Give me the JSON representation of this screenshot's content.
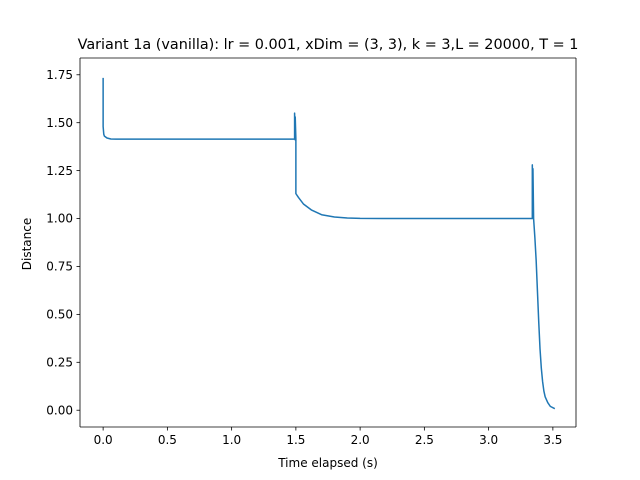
{
  "chart_data": {
    "type": "line",
    "title": "Variant 1a (vanilla): lr = 0.001, xDim = (3, 3), k = 3,L = 20000, T = 1",
    "xlabel": "Time elapsed (s)",
    "ylabel": "Distance",
    "xlim": [
      -0.18,
      3.68
    ],
    "ylim": [
      -0.0875,
      1.8375
    ],
    "xticks": [
      0.0,
      0.5,
      1.0,
      1.5,
      2.0,
      2.5,
      3.0,
      3.5
    ],
    "xtick_labels": [
      "0.0",
      "0.5",
      "1.0",
      "1.5",
      "2.0",
      "2.5",
      "3.0",
      "3.5"
    ],
    "yticks": [
      0.0,
      0.25,
      0.5,
      0.75,
      1.0,
      1.25,
      1.5,
      1.75
    ],
    "ytick_labels": [
      "0.00",
      "0.25",
      "0.50",
      "0.75",
      "1.00",
      "1.25",
      "1.50",
      "1.75"
    ],
    "grid": false,
    "legend": "none",
    "series": [
      {
        "color": "#1f77b4",
        "x": [
          0.0,
          0.0,
          0.005,
          0.01,
          0.03,
          0.06,
          0.1,
          0.5,
          1.0,
          1.49,
          1.49,
          1.495,
          1.495,
          1.5,
          1.5,
          1.52,
          1.56,
          1.62,
          1.7,
          1.8,
          1.9,
          2.0,
          2.2,
          2.5,
          3.0,
          3.34,
          3.34,
          3.345,
          3.345,
          3.35,
          3.36,
          3.37,
          3.38,
          3.39,
          3.4,
          3.41,
          3.42,
          3.43,
          3.44,
          3.46,
          3.48,
          3.51
        ],
        "y": [
          1.73,
          1.48,
          1.44,
          1.43,
          1.42,
          1.415,
          1.414,
          1.414,
          1.414,
          1.414,
          1.55,
          1.41,
          1.53,
          1.414,
          1.13,
          1.11,
          1.075,
          1.045,
          1.02,
          1.008,
          1.003,
          1.001,
          1.0,
          1.0,
          1.0,
          1.0,
          1.28,
          1.0,
          1.26,
          1.0,
          0.9,
          0.78,
          0.62,
          0.46,
          0.32,
          0.22,
          0.15,
          0.1,
          0.07,
          0.04,
          0.02,
          0.01
        ]
      }
    ]
  }
}
